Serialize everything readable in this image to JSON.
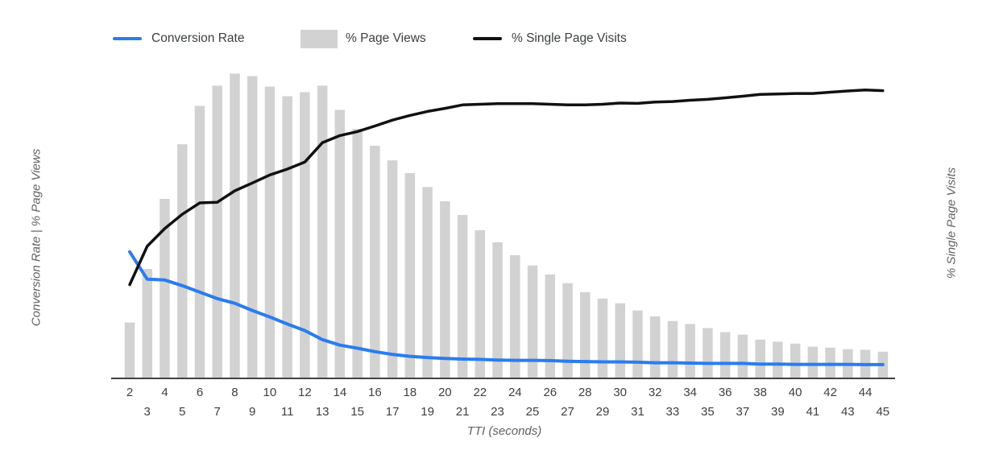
{
  "page": {
    "background": "#ffffff"
  },
  "legend": {
    "items": [
      {
        "label": "Conversion Rate",
        "swatch": "line",
        "color": "#2a7cf0"
      },
      {
        "label": "% Page Views",
        "swatch": "box",
        "color": "#d2d2d2"
      },
      {
        "label": "% Single Page Visits",
        "swatch": "line",
        "color": "#111111"
      }
    ]
  },
  "axes": {
    "left_label": "Conversion Rate | % Page Views",
    "right_label": "% Single Page Visits",
    "x_label": "TTI (seconds)"
  },
  "chart_data": {
    "type": "bar",
    "subtype": "combo bar+line, dual y-axis",
    "title": "",
    "xlabel": "TTI (seconds)",
    "ylabel": "Conversion Rate | % Page Views",
    "ylabel_right": "% Single Page Visits",
    "grid": false,
    "legend_position": "top",
    "y_axis_note": "no numeric y tick labels shown; values are percent of plot height (0-100 relative scale)",
    "ylim": [
      0,
      105
    ],
    "x": [
      2,
      3,
      4,
      5,
      6,
      7,
      8,
      9,
      10,
      11,
      12,
      13,
      14,
      15,
      16,
      17,
      18,
      19,
      20,
      21,
      22,
      23,
      24,
      25,
      26,
      27,
      28,
      29,
      30,
      31,
      32,
      33,
      34,
      35,
      36,
      37,
      38,
      39,
      40,
      41,
      42,
      43,
      44,
      45
    ],
    "series": [
      {
        "name": "Conversion Rate",
        "type": "line",
        "axis": "left",
        "color": "#2a7cf0",
        "stroke_width": 4,
        "values": [
          40.7,
          31.9,
          31.6,
          29.8,
          27.7,
          25.6,
          24.1,
          21.8,
          19.7,
          17.4,
          15.3,
          12.4,
          10.6,
          9.6,
          8.5,
          7.6,
          7.0,
          6.6,
          6.3,
          6.1,
          6.0,
          5.8,
          5.7,
          5.7,
          5.6,
          5.4,
          5.3,
          5.2,
          5.2,
          5.1,
          4.9,
          4.9,
          4.8,
          4.7,
          4.7,
          4.7,
          4.5,
          4.5,
          4.4,
          4.4,
          4.4,
          4.4,
          4.3,
          4.3
        ]
      },
      {
        "name": "% Page Views",
        "type": "bar",
        "axis": "left",
        "color": "#d2d2d2",
        "values": [
          17.9,
          35.2,
          57.8,
          75.4,
          87.8,
          94.3,
          98.2,
          97.4,
          94.0,
          90.9,
          92.2,
          94.3,
          86.5,
          80.4,
          74.9,
          70.2,
          66.1,
          61.6,
          57.0,
          52.6,
          47.7,
          43.8,
          39.6,
          36.3,
          33.4,
          30.6,
          27.7,
          25.6,
          24.1,
          21.8,
          19.9,
          18.4,
          17.4,
          16.1,
          14.8,
          14.0,
          12.4,
          11.7,
          11.1,
          10.1,
          9.8,
          9.3,
          9.1,
          8.5
        ]
      },
      {
        "name": "% Single Page Visits",
        "type": "line",
        "axis": "right",
        "color": "#111111",
        "stroke_width": 3.5,
        "values": [
          30.1,
          42.5,
          48.2,
          52.8,
          56.5,
          56.7,
          60.4,
          62.9,
          65.5,
          67.4,
          69.7,
          75.9,
          78.2,
          79.5,
          81.3,
          83.2,
          84.7,
          86.0,
          87.0,
          88.1,
          88.3,
          88.5,
          88.5,
          88.5,
          88.3,
          88.1,
          88.1,
          88.3,
          88.7,
          88.6,
          89.0,
          89.2,
          89.6,
          89.9,
          90.4,
          90.9,
          91.5,
          91.6,
          91.8,
          91.8,
          92.2,
          92.6,
          92.9,
          92.7
        ]
      }
    ],
    "x_tick_layout": "even values on upper row, odd values on lower row",
    "axis_line_color": "#424242"
  }
}
